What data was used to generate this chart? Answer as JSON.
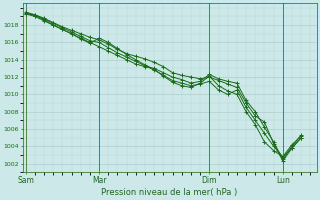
{
  "background_color": "#cce8e8",
  "grid_color_major": "#a8c8c0",
  "grid_color_minor": "#b8d8d0",
  "line_color": "#1a6b1a",
  "title": "Pression niveau de la mer( hPa )",
  "xtick_labels": [
    "Sam",
    "Mar",
    "Dim",
    "Lun"
  ],
  "xtick_positions": [
    0,
    48,
    120,
    168
  ],
  "ylim": [
    1001.0,
    1020.5
  ],
  "xlim": [
    -2,
    190
  ],
  "yticks": [
    1002,
    1004,
    1006,
    1008,
    1010,
    1012,
    1014,
    1016,
    1018
  ],
  "series1_x": [
    0,
    6,
    12,
    18,
    24,
    30,
    36,
    42,
    48,
    54,
    60,
    66,
    72,
    78,
    84,
    90,
    96,
    102,
    108,
    114,
    120,
    126,
    132,
    138,
    144,
    150,
    156,
    162,
    168,
    174,
    180
  ],
  "series1_y": [
    1019.3,
    1019.2,
    1018.8,
    1018.3,
    1017.8,
    1017.4,
    1017.0,
    1016.6,
    1016.3,
    1015.8,
    1015.2,
    1014.7,
    1014.4,
    1014.1,
    1013.7,
    1013.2,
    1012.5,
    1012.2,
    1012.0,
    1011.8,
    1012.0,
    1011.6,
    1011.2,
    1010.8,
    1009.0,
    1007.5,
    1006.8,
    1004.3,
    1002.3,
    1003.8,
    1005.0
  ],
  "series2_x": [
    0,
    6,
    12,
    18,
    24,
    30,
    36,
    42,
    48,
    54,
    60,
    66,
    72,
    78,
    84,
    90,
    96,
    102,
    108,
    114,
    120,
    126,
    132,
    138,
    144,
    150,
    156,
    162,
    168,
    174,
    180
  ],
  "series2_y": [
    1019.3,
    1019.0,
    1018.5,
    1018.0,
    1017.5,
    1017.0,
    1016.4,
    1015.9,
    1016.5,
    1016.0,
    1015.3,
    1014.6,
    1014.0,
    1013.4,
    1012.9,
    1012.1,
    1011.4,
    1011.0,
    1010.8,
    1011.3,
    1012.1,
    1011.0,
    1010.4,
    1010.0,
    1008.0,
    1006.5,
    1004.5,
    1003.5,
    1002.8,
    1003.8,
    1005.0
  ],
  "series3_x": [
    0,
    6,
    12,
    18,
    24,
    30,
    36,
    42,
    48,
    54,
    60,
    66,
    72,
    78,
    84,
    90,
    96,
    102,
    108,
    114,
    120,
    126,
    132,
    138,
    144,
    150,
    156,
    162,
    168,
    174,
    180
  ],
  "series3_y": [
    1019.5,
    1019.2,
    1018.6,
    1018.0,
    1017.5,
    1017.0,
    1016.5,
    1016.0,
    1015.5,
    1015.0,
    1014.5,
    1014.0,
    1013.5,
    1013.2,
    1013.0,
    1012.5,
    1012.0,
    1011.7,
    1011.3,
    1011.5,
    1012.3,
    1011.8,
    1011.5,
    1011.3,
    1009.3,
    1008.0,
    1006.2,
    1004.5,
    1002.5,
    1004.0,
    1005.3
  ],
  "series4_x": [
    0,
    6,
    12,
    18,
    24,
    30,
    36,
    42,
    48,
    54,
    60,
    66,
    72,
    78,
    84,
    90,
    96,
    102,
    108,
    114,
    120,
    126,
    132,
    138,
    144,
    150,
    156,
    162,
    168,
    174,
    180
  ],
  "series4_y": [
    1019.4,
    1019.1,
    1018.7,
    1018.2,
    1017.7,
    1017.2,
    1016.7,
    1016.2,
    1016.0,
    1015.4,
    1014.8,
    1014.3,
    1013.8,
    1013.3,
    1012.8,
    1012.2,
    1011.6,
    1011.3,
    1011.0,
    1011.2,
    1011.5,
    1010.5,
    1010.0,
    1010.5,
    1008.5,
    1007.0,
    1005.5,
    1004.0,
    1002.8,
    1004.2,
    1005.2
  ]
}
